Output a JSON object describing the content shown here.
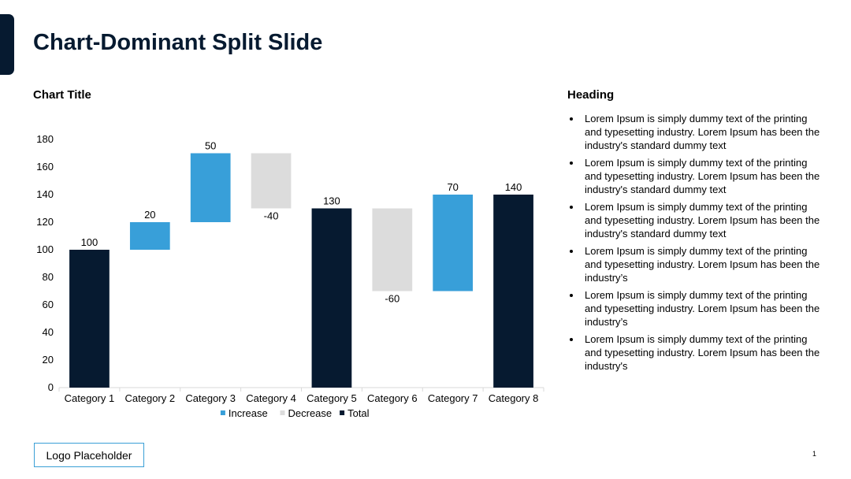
{
  "slide": {
    "title": "Chart-Dominant Split Slide",
    "page_number": "1",
    "logo_text": "Logo Placeholder"
  },
  "colors": {
    "total": "#061a30",
    "increase": "#389fd9",
    "decrease": "#dcdcdc",
    "axis": "#d9d9d9"
  },
  "chart_data": {
    "type": "bar",
    "subtype": "waterfall",
    "title": "Chart Title",
    "categories": [
      "Category 1",
      "Category 2",
      "Category 3",
      "Category 4",
      "Category 5",
      "Category 6",
      "Category 7",
      "Category 8"
    ],
    "bars": [
      {
        "kind": "total",
        "start": 0,
        "end": 100,
        "label": "100"
      },
      {
        "kind": "increase",
        "start": 100,
        "end": 120,
        "label": "20"
      },
      {
        "kind": "increase",
        "start": 120,
        "end": 170,
        "label": "50"
      },
      {
        "kind": "decrease",
        "start": 170,
        "end": 130,
        "label": "-40"
      },
      {
        "kind": "total",
        "start": 0,
        "end": 130,
        "label": "130"
      },
      {
        "kind": "decrease",
        "start": 130,
        "end": 70,
        "label": "-60"
      },
      {
        "kind": "increase",
        "start": 70,
        "end": 140,
        "label": "70"
      },
      {
        "kind": "total",
        "start": 0,
        "end": 140,
        "label": "140"
      }
    ],
    "ylim": [
      0,
      180
    ],
    "yticks": [
      0,
      20,
      40,
      60,
      80,
      100,
      120,
      140,
      160,
      180
    ],
    "xlabel": "",
    "ylabel": "",
    "grid": false,
    "legend": {
      "position": "bottom",
      "entries": [
        {
          "label": "Increase",
          "kind": "increase"
        },
        {
          "label": "Decrease",
          "kind": "decrease"
        },
        {
          "label": "Total",
          "kind": "total"
        }
      ]
    }
  },
  "panel": {
    "heading": "Heading",
    "bullets": [
      "Lorem Ipsum is simply dummy text of the printing and typesetting industry. Lorem Ipsum has been the industry's standard dummy text",
      "Lorem Ipsum is simply dummy text of the printing and typesetting industry. Lorem Ipsum has been the industry's standard dummy text",
      "Lorem Ipsum is simply dummy text of the printing and typesetting industry. Lorem Ipsum has been the industry's standard dummy text",
      "Lorem Ipsum is simply dummy text of the printing and typesetting industry. Lorem Ipsum has been the industry’s",
      "Lorem Ipsum is simply dummy text of the printing and typesetting industry. Lorem Ipsum has been the industry’s",
      "Lorem Ipsum is simply dummy text of the printing and typesetting industry. Lorem Ipsum has been the industry's"
    ]
  }
}
